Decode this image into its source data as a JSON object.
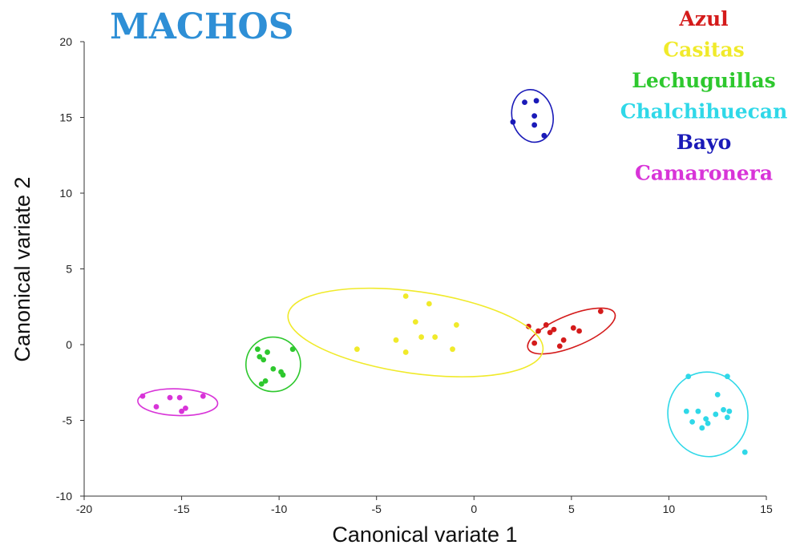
{
  "chart_data": {
    "type": "scatter",
    "title": "MACHOS",
    "xlabel": "Canonical variate 1",
    "ylabel": "Canonical variate 2",
    "xlim": [
      -20,
      15
    ],
    "ylim": [
      -10,
      20
    ],
    "xticks": [
      -20,
      -15,
      -10,
      -5,
      0,
      5,
      10,
      15
    ],
    "yticks": [
      -10,
      -5,
      0,
      5,
      10,
      15,
      20
    ],
    "grid": false,
    "legend_position": "top-right",
    "series": [
      {
        "name": "Azul",
        "color": "#d41b1b",
        "ellipse": {
          "cx": 5.0,
          "cy": 0.9,
          "rx": 2.4,
          "ry": 1.05,
          "rotation_deg": -22
        },
        "points": [
          [
            2.8,
            1.2
          ],
          [
            3.3,
            0.9
          ],
          [
            3.7,
            1.3
          ],
          [
            3.9,
            0.8
          ],
          [
            3.1,
            0.1
          ],
          [
            4.1,
            1.0
          ],
          [
            4.6,
            0.3
          ],
          [
            4.4,
            -0.1
          ],
          [
            5.1,
            1.1
          ],
          [
            5.4,
            0.9
          ],
          [
            6.5,
            2.2
          ]
        ]
      },
      {
        "name": "Casitas",
        "color": "#f0ea2a",
        "ellipse": {
          "cx": -3.0,
          "cy": 0.8,
          "rx": 6.6,
          "ry": 2.7,
          "rotation_deg": 8
        },
        "points": [
          [
            -3.5,
            3.2
          ],
          [
            -2.3,
            2.7
          ],
          [
            -3.0,
            1.5
          ],
          [
            -0.9,
            1.3
          ],
          [
            -2.7,
            0.5
          ],
          [
            -2.0,
            0.5
          ],
          [
            -4.0,
            0.3
          ],
          [
            -3.5,
            -0.5
          ],
          [
            -1.1,
            -0.3
          ],
          [
            -6.0,
            -0.3
          ]
        ]
      },
      {
        "name": "Lechuguillas",
        "color": "#2ec82e",
        "ellipse": {
          "cx": -10.3,
          "cy": -1.3,
          "rx": 1.4,
          "ry": 1.8,
          "rotation_deg": 5
        },
        "points": [
          [
            -11.1,
            -0.3
          ],
          [
            -10.6,
            -0.5
          ],
          [
            -11.0,
            -0.8
          ],
          [
            -10.8,
            -1.0
          ],
          [
            -9.3,
            -0.3
          ],
          [
            -10.3,
            -1.6
          ],
          [
            -9.9,
            -1.8
          ],
          [
            -9.8,
            -2.0
          ],
          [
            -10.7,
            -2.4
          ],
          [
            -10.9,
            -2.6
          ]
        ]
      },
      {
        "name": "Chalchihuecan",
        "color": "#2fd8e8",
        "ellipse": {
          "cx": 12.0,
          "cy": -4.6,
          "rx": 2.05,
          "ry": 2.8,
          "rotation_deg": -12
        },
        "points": [
          [
            11.0,
            -2.1
          ],
          [
            13.0,
            -2.1
          ],
          [
            12.5,
            -3.3
          ],
          [
            10.9,
            -4.4
          ],
          [
            11.5,
            -4.4
          ],
          [
            12.8,
            -4.3
          ],
          [
            13.1,
            -4.4
          ],
          [
            12.4,
            -4.6
          ],
          [
            13.0,
            -4.8
          ],
          [
            11.9,
            -4.9
          ],
          [
            11.2,
            -5.1
          ],
          [
            12.0,
            -5.2
          ],
          [
            11.7,
            -5.5
          ],
          [
            13.9,
            -7.1
          ]
        ]
      },
      {
        "name": "Bayo",
        "color": "#1a1ab8",
        "ellipse": {
          "cx": 3.0,
          "cy": 15.1,
          "rx": 1.05,
          "ry": 1.75,
          "rotation_deg": -12
        },
        "points": [
          [
            2.6,
            16.0
          ],
          [
            3.2,
            16.1
          ],
          [
            3.1,
            15.1
          ],
          [
            2.0,
            14.7
          ],
          [
            3.1,
            14.5
          ],
          [
            3.6,
            13.8
          ]
        ]
      },
      {
        "name": "Camaronera",
        "color": "#d834d8",
        "ellipse": {
          "cx": -15.2,
          "cy": -3.8,
          "rx": 2.05,
          "ry": 0.88,
          "rotation_deg": 2
        },
        "points": [
          [
            -17.0,
            -3.4
          ],
          [
            -15.6,
            -3.5
          ],
          [
            -15.1,
            -3.5
          ],
          [
            -13.9,
            -3.4
          ],
          [
            -16.3,
            -4.1
          ],
          [
            -15.0,
            -4.4
          ],
          [
            -14.8,
            -4.2
          ]
        ]
      }
    ]
  }
}
